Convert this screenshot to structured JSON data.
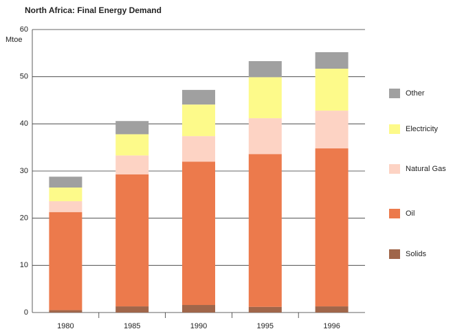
{
  "chart_data": {
    "type": "stacked_bar",
    "title": "North Africa: Final Energy Demand",
    "y_label": "Mtoe",
    "categories": [
      "1980",
      "1985",
      "1990",
      "1995",
      "1996"
    ],
    "series": [
      {
        "name": "Solids",
        "color": "#a0664a",
        "values": [
          0.5,
          1.3,
          1.6,
          1.2,
          1.3
        ]
      },
      {
        "name": "Oil",
        "color": "#ec7a4c",
        "values": [
          20.8,
          28.0,
          30.4,
          32.4,
          33.5
        ]
      },
      {
        "name": "Natural Gas",
        "color": "#fdd3c4",
        "values": [
          2.3,
          4.0,
          5.4,
          7.6,
          8.0
        ]
      },
      {
        "name": "Electricity",
        "color": "#fdfa8a",
        "values": [
          2.9,
          4.5,
          6.7,
          8.7,
          8.9
        ]
      },
      {
        "name": "Other",
        "color": "#a0a0a0",
        "values": [
          2.3,
          2.8,
          3.1,
          3.4,
          3.5
        ]
      }
    ],
    "ylim": [
      0,
      60
    ],
    "yticks": [
      0,
      10,
      20,
      30,
      40,
      50,
      60
    ],
    "grid": true
  }
}
